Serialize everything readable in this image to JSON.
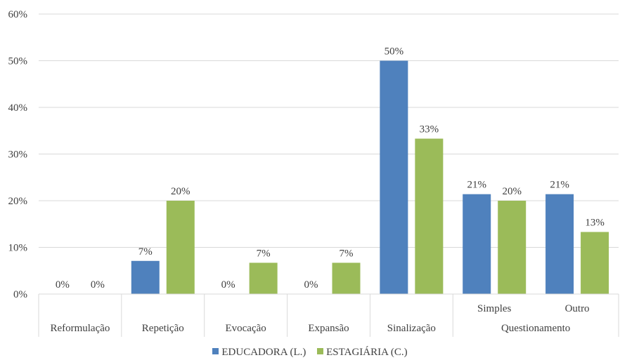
{
  "chart_data": {
    "type": "bar",
    "categories": [
      "Reformulação",
      "Repetição",
      "Evocação",
      "Expansão",
      "Sinalização",
      "Simples",
      "Outro"
    ],
    "category_groups": [
      {
        "label": "Reformulação",
        "span": 1
      },
      {
        "label": "Repetição",
        "span": 1
      },
      {
        "label": "Evocação",
        "span": 1
      },
      {
        "label": "Expansão",
        "span": 1
      },
      {
        "label": "Sinalização",
        "span": 1
      },
      {
        "label": "Questionamento",
        "span": 2
      }
    ],
    "series": [
      {
        "name": "EDUCADORA (L.)",
        "color": "#4f81bd",
        "values": [
          0,
          7.1,
          0,
          0,
          50,
          21.4,
          21.4
        ],
        "labels": [
          "0%",
          "7%",
          "0%",
          "0%",
          "50%",
          "21%",
          "21%"
        ]
      },
      {
        "name": "ESTAGIÁRIA (C.)",
        "color": "#9bbb59",
        "values": [
          0,
          20,
          6.7,
          6.7,
          33.3,
          20,
          13.3
        ],
        "labels": [
          "0%",
          "20%",
          "7%",
          "7%",
          "33%",
          "20%",
          "13%"
        ]
      }
    ],
    "y_ticks": [
      "0%",
      "10%",
      "20%",
      "30%",
      "40%",
      "50%",
      "60%"
    ],
    "ylim": [
      0,
      60
    ],
    "grid": true,
    "legend_position": "bottom"
  }
}
